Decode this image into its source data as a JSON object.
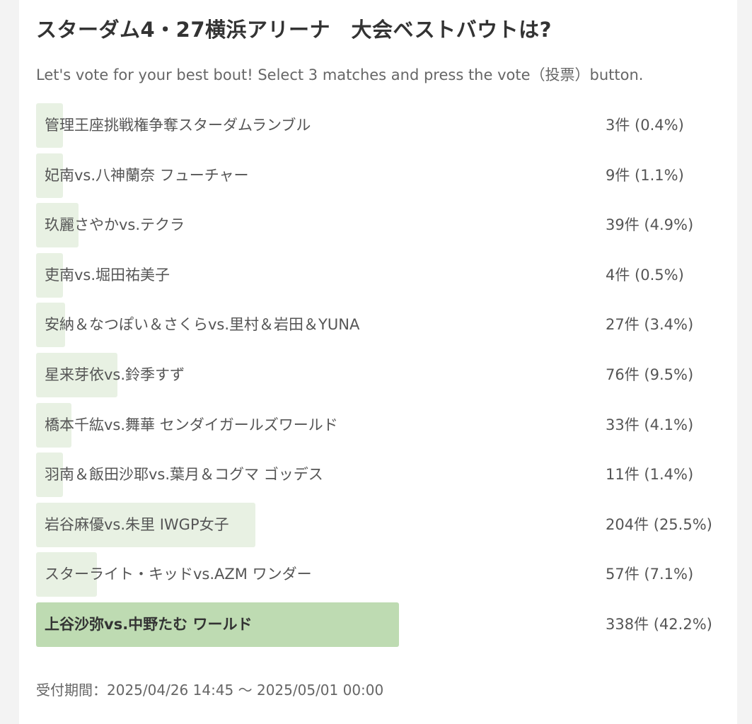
{
  "poll": {
    "title": "スターダム4・27横浜アリーナ　大会ベストバウトは?",
    "description": "Let's vote for your best bout! Select 3 matches and press the vote（投票）button.",
    "period": "受付期間：2025/04/26 14:45 ～ 2025/05/01 00:00",
    "options": [
      {
        "label": "管理王座挑戦権争奪スターダムランブル",
        "result": "3件 (0.4%)",
        "percent": 0.4
      },
      {
        "label": "妃南vs.八神蘭奈 フューチャー",
        "result": "9件 (1.1%)",
        "percent": 1.1
      },
      {
        "label": "玖麗さやかvs.テクラ",
        "result": "39件 (4.9%)",
        "percent": 4.9
      },
      {
        "label": "吏南vs.堀田祐美子",
        "result": "4件 (0.5%)",
        "percent": 0.5
      },
      {
        "label": "安納＆なつぽい＆さくらvs.里村＆岩田＆YUNA",
        "result": "27件 (3.4%)",
        "percent": 3.4
      },
      {
        "label": "星来芽依vs.鈴季すず",
        "result": "76件 (9.5%)",
        "percent": 9.5
      },
      {
        "label": "橋本千紘vs.舞華 センダイガールズワールド",
        "result": "33件 (4.1%)",
        "percent": 4.1
      },
      {
        "label": "羽南＆飯田沙耶vs.葉月＆コグマ ゴッデス",
        "result": "11件 (1.4%)",
        "percent": 1.4
      },
      {
        "label": "岩谷麻優vs.朱里 IWGP女子",
        "result": "204件 (25.5%)",
        "percent": 25.5
      },
      {
        "label": "スターライト・キッドvs.AZM ワンダー",
        "result": "57件 (7.1%)",
        "percent": 7.1
      },
      {
        "label": "上谷沙弥vs.中野たむ ワールド",
        "result": "338件 (42.2%)",
        "percent": 42.2,
        "leader": true
      }
    ]
  },
  "colors": {
    "bar": "#e8f1e3",
    "bar_leader": "#bedbb2"
  }
}
